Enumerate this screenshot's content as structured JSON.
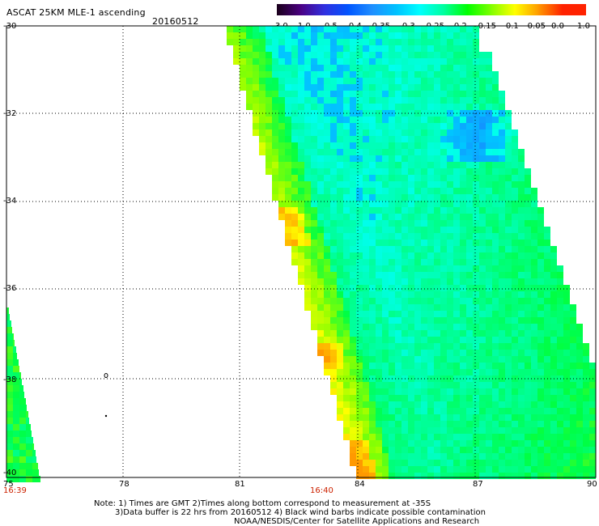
{
  "header": {
    "title": "ASCAT 25KM MLE-1 ascending",
    "date": "20160512"
  },
  "colorbar": {
    "labels": [
      "-3.0",
      "-1.0",
      "-0.5",
      "-0.4",
      "-0.35",
      "-0.3",
      "-0.25",
      "-0.2",
      "-0.15",
      "-0.1",
      "-0.05",
      "0.0",
      "1.0"
    ],
    "colors": [
      "#1a001a",
      "#4b0082",
      "#3030e0",
      "#0055ff",
      "#1f8fff",
      "#00c0ff",
      "#00ffff",
      "#00ffa0",
      "#00ff00",
      "#7fff00",
      "#ffff00",
      "#ff9900",
      "#ff2200"
    ]
  },
  "map": {
    "lat_labels": [
      "-30",
      "-32",
      "-34",
      "-36",
      "-38",
      "-40"
    ],
    "lon_labels": [
      "75",
      "78",
      "81",
      "84",
      "87",
      "90"
    ],
    "time_labels": [
      "16:39",
      "16:40"
    ],
    "lon_range": [
      75,
      90
    ],
    "lat_range": [
      -40,
      -30
    ],
    "grid": true
  },
  "footer": {
    "line1": "Note: 1) Times are GMT 2)Times along bottom correspond to measurement at -35S",
    "line2": "3)Data buffer is 22 hrs from 20160512 4) Black wind barbs indicate possible contamination",
    "line3": "NOAA/NESDIS/Center for Satellite Applications and Research"
  }
}
